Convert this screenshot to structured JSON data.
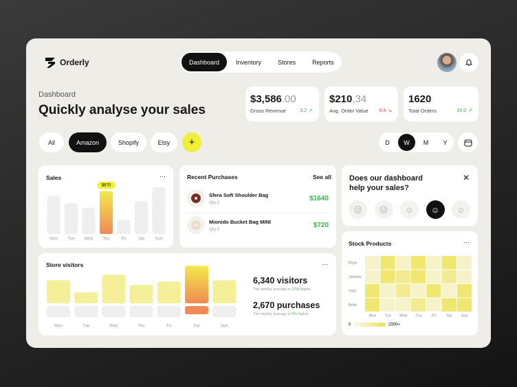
{
  "header": {
    "logo": "Orderly",
    "nav": [
      "Dashboard",
      "Inventory",
      "Stores",
      "Reports"
    ],
    "active_nav": 0
  },
  "page": {
    "label": "Dashboard",
    "title": "Quickly analyse your sales"
  },
  "stats": [
    {
      "value": "$3,586",
      "decimals": ".00",
      "label": "Gross Revenue",
      "change": "3.2",
      "trend": "up"
    },
    {
      "value": "$210",
      "decimals": ",34",
      "label": "Avg. Order Value",
      "change": "0.4",
      "trend": "down"
    },
    {
      "value": "1620",
      "label": "Total Orders",
      "change": "16.0",
      "trend": "up"
    }
  ],
  "filters": {
    "stores": [
      "All",
      "Amazon",
      "Shopify",
      "Etsy"
    ],
    "active_store": 1,
    "periods": [
      "D",
      "W",
      "M",
      "Y"
    ],
    "active_period": 1
  },
  "sales": {
    "type": "bar",
    "title": "Sales",
    "categories": [
      "Mon",
      "Tue",
      "Wed",
      "Thu",
      "Fri",
      "Sat",
      "Sun"
    ],
    "values": [
      590,
      480,
      410,
      670,
      220,
      510,
      730
    ],
    "highlight": 3,
    "highlight_label": "$670",
    "ylim": [
      0,
      750
    ]
  },
  "purchases": {
    "title": "Recent Purchases",
    "link": "See all",
    "items": [
      {
        "name": "Sfera Soft Shoulder Bag",
        "qty": "Qty:2",
        "price": "$1640"
      },
      {
        "name": "Mionido Bucket Bag MINI",
        "qty": "Qty:1",
        "price": "$720"
      }
    ]
  },
  "survey": {
    "question": "Does our dashboard help your sales?",
    "options": 5,
    "selected": 3
  },
  "visitors": {
    "type": "bar",
    "title": "Store visitors",
    "categories": [
      "Mon",
      "Tue",
      "Wed",
      "Thu",
      "Fri",
      "Sat",
      "Sun"
    ],
    "values": [
      898,
      423,
      1109,
      713,
      845,
      1453,
      898
    ],
    "highlight": 5,
    "ylim": [
      0,
      1600
    ],
    "stats": [
      {
        "value": "6,340 visitors",
        "note_before": "The weekly average is ",
        "note_highlight": "17%",
        "note_after": " higher."
      },
      {
        "value": "2,670 purchases",
        "note_before": "The weekly average is ",
        "note_highlight": "5%",
        "note_after": " higher."
      }
    ]
  },
  "stock": {
    "type": "heatmap",
    "title": "Stock Products",
    "rows": [
      "Bags",
      "Jewelry",
      "Hats",
      "Belts"
    ],
    "columns": [
      "Mon",
      "Tue",
      "Wed",
      "Thu",
      "Fri",
      "Sat",
      "Sun"
    ],
    "values": [
      [
        300,
        1800,
        300,
        1800,
        300,
        1800,
        300
      ],
      [
        300,
        1800,
        1200,
        1800,
        300,
        1200,
        300
      ],
      [
        1800,
        300,
        1200,
        300,
        1800,
        300,
        1800
      ],
      [
        1800,
        300,
        300,
        1200,
        300,
        1800,
        1800
      ]
    ],
    "legend_min": "0",
    "legend_max": "2000+",
    "vmax": 2000
  }
}
